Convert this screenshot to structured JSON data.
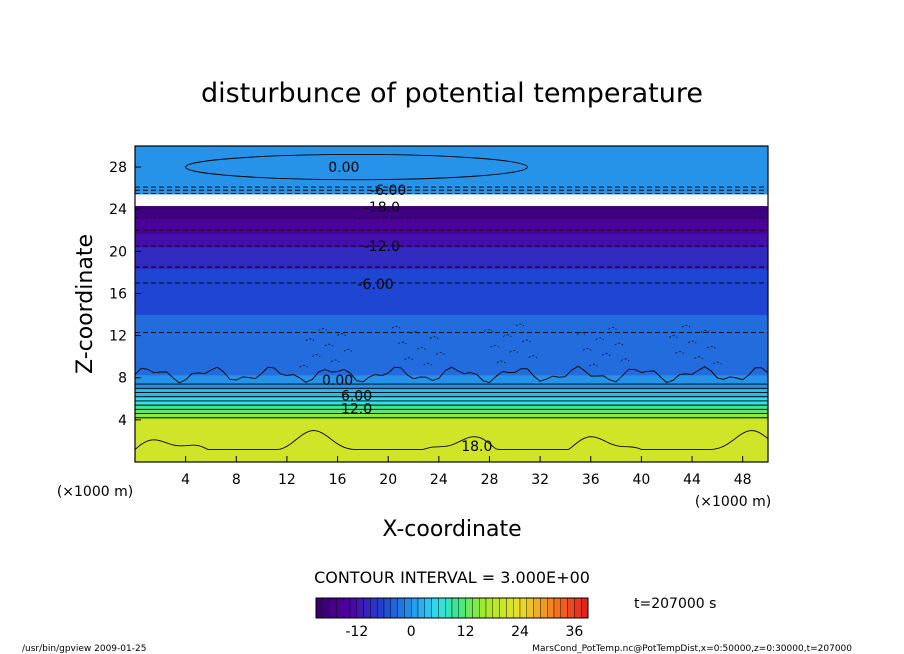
{
  "chart_data": {
    "type": "heatmap",
    "title": "disturbunce of potential temperature",
    "xlabel": "X-coordinate",
    "ylabel": "Z-coordinate",
    "x_unit_left": "(×1000 m)",
    "x_unit_right": "(×1000 m)",
    "xlim": [
      0,
      50
    ],
    "ylim": [
      0,
      30
    ],
    "x_ticks": [
      4,
      8,
      12,
      16,
      20,
      24,
      28,
      32,
      36,
      40,
      44,
      48
    ],
    "y_ticks": [
      4,
      8,
      12,
      16,
      20,
      24,
      28
    ],
    "contour_interval_text": "CONTOUR INTERVAL = 3.000E+00",
    "time_label": "t=207000 s",
    "colorbar": {
      "min": -21,
      "max": 39,
      "tick_values": [
        -12,
        0,
        12,
        24,
        36
      ],
      "tick_labels": [
        "-12",
        "0",
        "12",
        "24",
        "36"
      ]
    },
    "contour_labels": [
      {
        "text": "0.00",
        "x": 16.5,
        "z": 28.0
      },
      {
        "text": "-6.00",
        "x": 20.0,
        "z": 25.8
      },
      {
        "text": "-18.0",
        "x": 19.5,
        "z": 24.2
      },
      {
        "text": "-12.0",
        "x": 19.5,
        "z": 20.5
      },
      {
        "text": "-6.00",
        "x": 19.0,
        "z": 16.9
      },
      {
        "text": "0.00",
        "x": 16.0,
        "z": 7.8
      },
      {
        "text": "6.00",
        "x": 17.5,
        "z": 6.3
      },
      {
        "text": "12.0",
        "x": 17.5,
        "z": 5.1
      },
      {
        "text": "18.0",
        "x": 27.0,
        "z": 1.5
      }
    ],
    "field_profile": [
      {
        "z": 0,
        "value": 20
      },
      {
        "z": 4,
        "value": 20
      },
      {
        "z": 4.6,
        "value": 13
      },
      {
        "z": 5.6,
        "value": 7
      },
      {
        "z": 6.6,
        "value": 2
      },
      {
        "z": 7.6,
        "value": 0
      },
      {
        "z": 8.4,
        "value": -2
      },
      {
        "z": 12,
        "value": -4
      },
      {
        "z": 16,
        "value": -5
      },
      {
        "z": 17.5,
        "value": -6
      },
      {
        "z": 20,
        "value": -10
      },
      {
        "z": 22.5,
        "value": -15
      },
      {
        "z": 24.3,
        "value": -20
      },
      {
        "z": 24.9,
        "value": 0
      },
      {
        "z": 25.3,
        "value": -1
      },
      {
        "z": 26.5,
        "value": -1
      },
      {
        "z": 27.5,
        "value": 0
      },
      {
        "z": 30,
        "value": 0
      }
    ]
  },
  "footer": {
    "left": "/usr/bin/gpview  2009-01-25",
    "right": "MarsCond_PotTemp.nc@PotTempDist,x=0:50000,z=0:30000,t=207000"
  },
  "colors": {
    "deep_purple": "#4b0082",
    "blue": "#1e5fd8",
    "cyan": "#30d8f0",
    "green": "#40e080",
    "yellow_green": "#a8ec28",
    "red": "#e82020"
  }
}
